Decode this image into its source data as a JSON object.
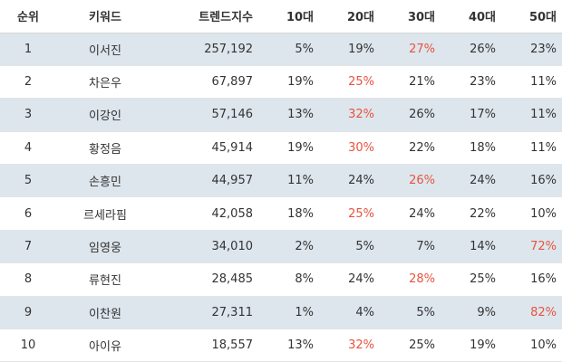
{
  "headers": {
    "rank": "순위",
    "keyword": "키워드",
    "trend_index": "트렌드지수",
    "age10": "10대",
    "age20": "20대",
    "age30": "30대",
    "age40": "40대",
    "age50": "50대"
  },
  "highlight_color": "#e8533f",
  "stripe_color": "#dde6ed",
  "rows": [
    {
      "rank": "1",
      "keyword": "이서진",
      "index": "257,192",
      "ages": [
        "5%",
        "19%",
        "27%",
        "26%",
        "23%"
      ],
      "highlight": 2
    },
    {
      "rank": "2",
      "keyword": "차은우",
      "index": "67,897",
      "ages": [
        "19%",
        "25%",
        "21%",
        "23%",
        "11%"
      ],
      "highlight": 1
    },
    {
      "rank": "3",
      "keyword": "이강인",
      "index": "57,146",
      "ages": [
        "13%",
        "32%",
        "26%",
        "17%",
        "11%"
      ],
      "highlight": 1
    },
    {
      "rank": "4",
      "keyword": "황정음",
      "index": "45,914",
      "ages": [
        "19%",
        "30%",
        "22%",
        "18%",
        "11%"
      ],
      "highlight": 1
    },
    {
      "rank": "5",
      "keyword": "손흥민",
      "index": "44,957",
      "ages": [
        "11%",
        "24%",
        "26%",
        "24%",
        "16%"
      ],
      "highlight": 2
    },
    {
      "rank": "6",
      "keyword": "르세라핌",
      "index": "42,058",
      "ages": [
        "18%",
        "25%",
        "24%",
        "22%",
        "10%"
      ],
      "highlight": 1
    },
    {
      "rank": "7",
      "keyword": "임영웅",
      "index": "34,010",
      "ages": [
        "2%",
        "5%",
        "7%",
        "14%",
        "72%"
      ],
      "highlight": 4
    },
    {
      "rank": "8",
      "keyword": "류현진",
      "index": "28,485",
      "ages": [
        "8%",
        "24%",
        "28%",
        "25%",
        "16%"
      ],
      "highlight": 2
    },
    {
      "rank": "9",
      "keyword": "이찬원",
      "index": "27,311",
      "ages": [
        "1%",
        "4%",
        "5%",
        "9%",
        "82%"
      ],
      "highlight": 4
    },
    {
      "rank": "10",
      "keyword": "아이유",
      "index": "18,557",
      "ages": [
        "13%",
        "32%",
        "25%",
        "19%",
        "10%"
      ],
      "highlight": 1
    }
  ]
}
